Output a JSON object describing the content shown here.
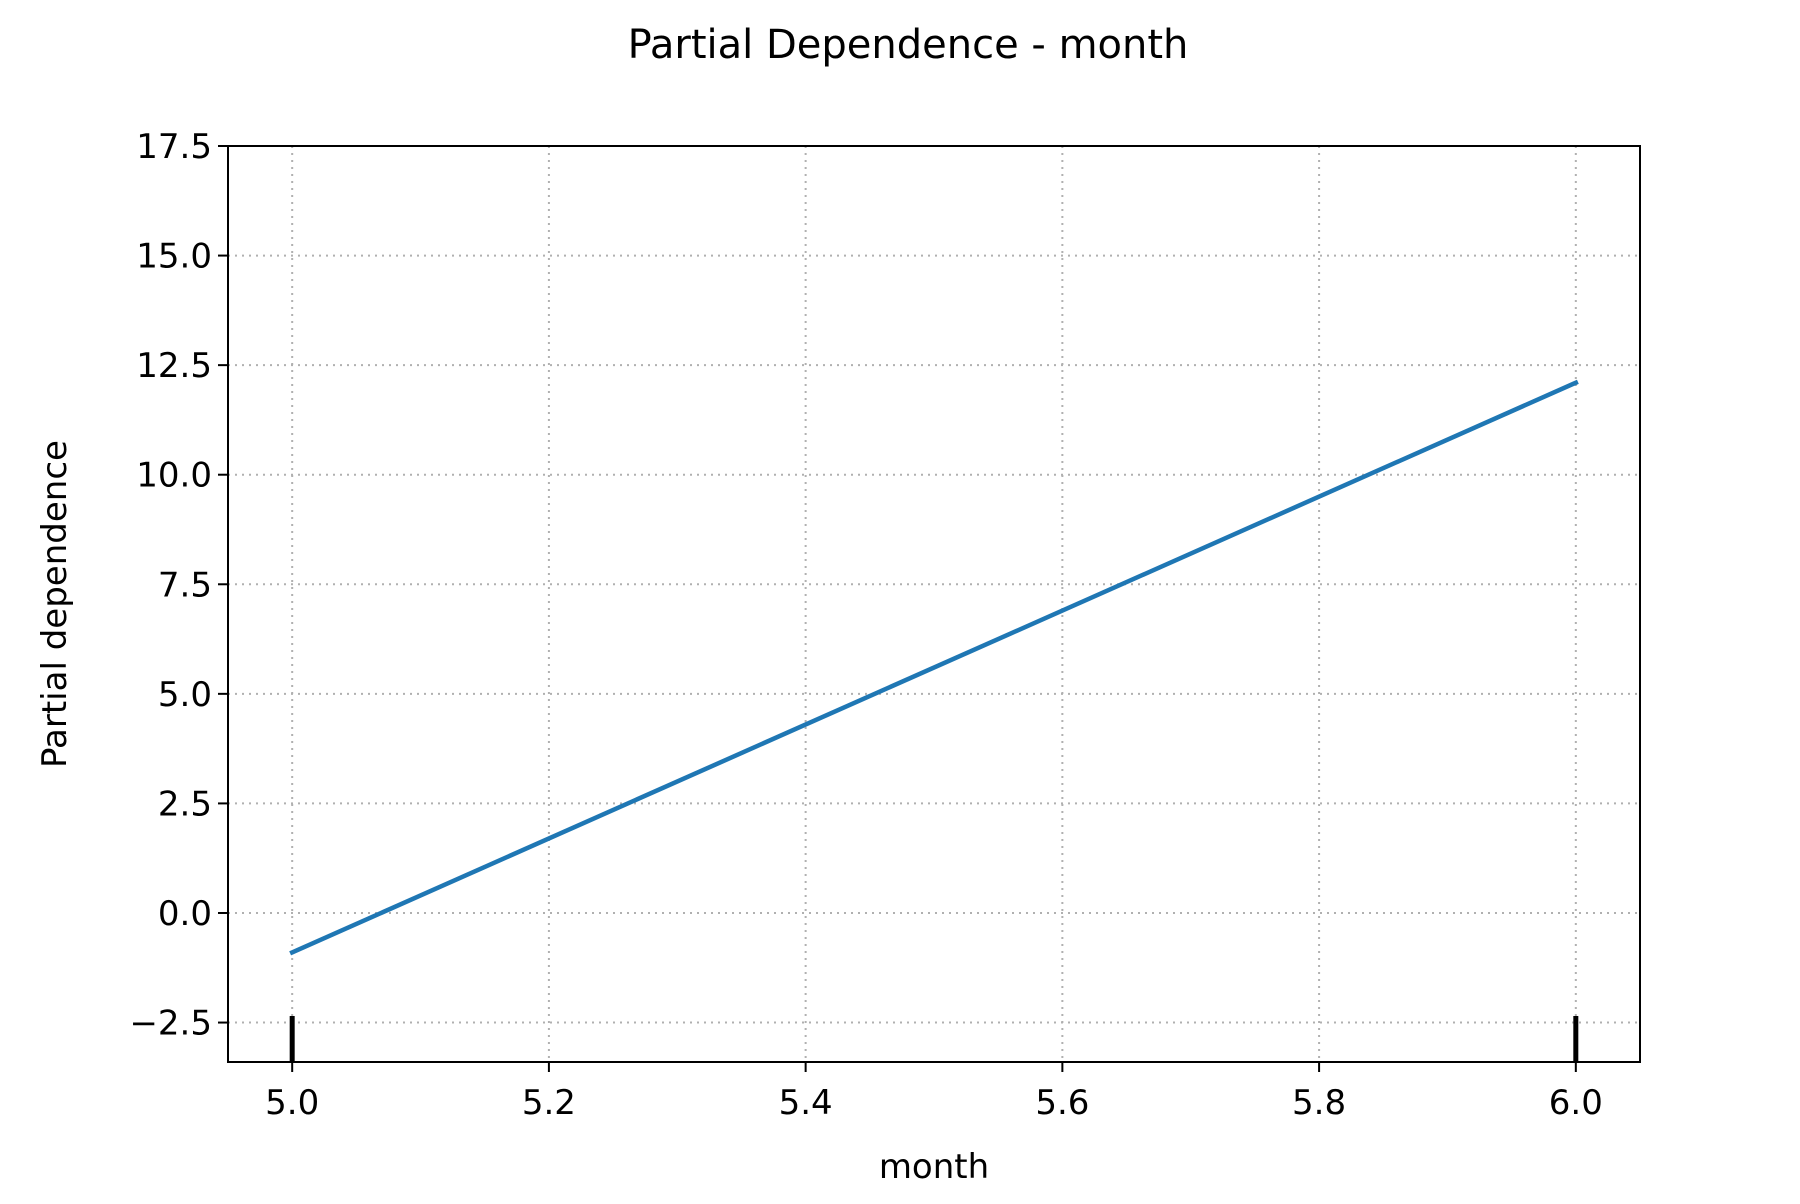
{
  "chart_data": {
    "type": "line",
    "title": "Partial Dependence - month",
    "xlabel": "month",
    "ylabel": "Partial dependence",
    "xlim": [
      4.95,
      6.05
    ],
    "ylim": [
      -3.4,
      17.5
    ],
    "xticks": [
      5.0,
      5.2,
      5.4,
      5.6,
      5.8,
      6.0
    ],
    "xtick_labels": [
      "5.0",
      "5.2",
      "5.4",
      "5.6",
      "5.8",
      "6.0"
    ],
    "yticks": [
      -2.5,
      0.0,
      2.5,
      5.0,
      7.5,
      10.0,
      12.5,
      15.0,
      17.5
    ],
    "ytick_labels": [
      "−2.5",
      "0.0",
      "2.5",
      "5.0",
      "7.5",
      "10.0",
      "12.5",
      "15.0",
      "17.5"
    ],
    "grid": true,
    "series": [
      {
        "x": [
          5.0,
          6.0
        ],
        "y": [
          -0.9,
          12.1
        ]
      }
    ],
    "rug": [
      5.0,
      6.0
    ],
    "colors": {
      "line": "#1f77b4",
      "grid": "#b0b0b0",
      "rug": "#000000"
    }
  }
}
